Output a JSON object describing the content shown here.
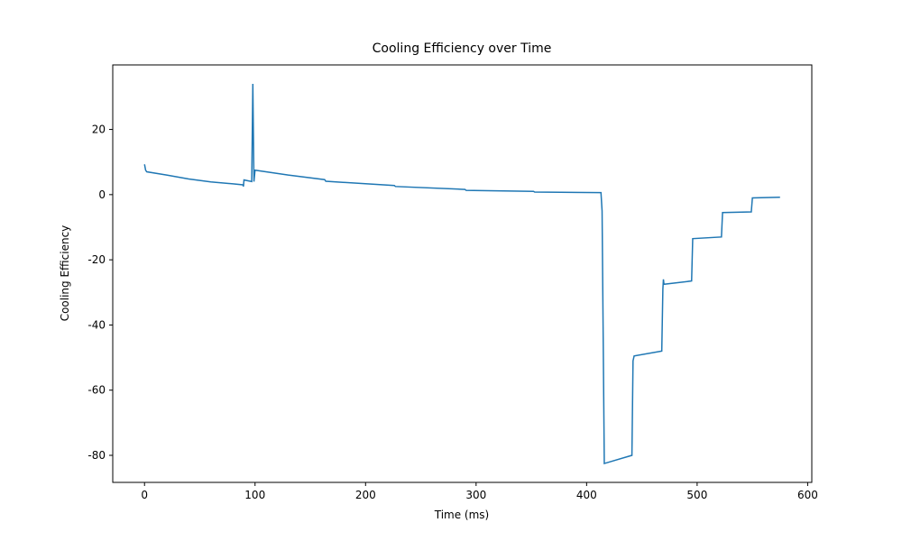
{
  "chart_data": {
    "type": "line",
    "title": "Cooling Efficiency over Time",
    "x_label": "Time (ms)",
    "y_label": "Cooling Efficiency",
    "xlim": [
      -28.75,
      603.75
    ],
    "ylim": [
      -88.3,
      39.8
    ],
    "xticks": [
      0,
      100,
      200,
      300,
      400,
      500,
      600
    ],
    "yticks": [
      -80,
      -60,
      -40,
      -20,
      0,
      20
    ],
    "series": [
      {
        "color": "#1f77b4",
        "x": [
          0,
          1,
          2,
          20,
          40,
          60,
          80,
          89,
          89.5,
          90,
          97,
          98,
          99,
          100,
          130,
          163,
          164,
          226,
          227,
          290,
          291,
          352,
          353,
          413,
          414,
          416,
          441,
          442,
          443,
          468,
          469,
          469.5,
          470,
          495,
          496,
          522,
          523,
          549,
          550,
          575
        ],
        "values": [
          9.3,
          7.5,
          7,
          6,
          4.8,
          3.9,
          3.3,
          3,
          2.5,
          4.5,
          4,
          34,
          4,
          7.5,
          6,
          4.6,
          4.1,
          2.8,
          2.5,
          1.6,
          1.3,
          1,
          0.8,
          0.6,
          -5,
          -82.5,
          -80,
          -51,
          -49.5,
          -48,
          -29,
          -26,
          -27.5,
          -26.5,
          -13.5,
          -13,
          -5.5,
          -5.3,
          -1,
          -0.8
        ]
      }
    ]
  }
}
